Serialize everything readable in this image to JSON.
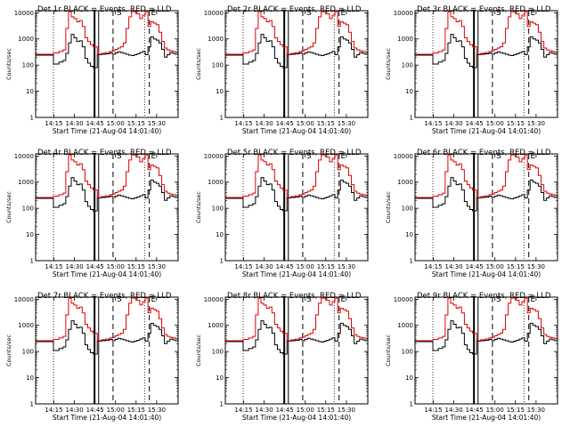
{
  "figure": {
    "panels": [
      {
        "title": "Det 1r BLACK = Events, RED = LLD"
      },
      {
        "title": "Det 2r BLACK = Events, RED = LLD"
      },
      {
        "title": "Det 3r BLACK = Events, RED = LLD"
      },
      {
        "title": "Det 4r BLACK = Events, RED = LLD"
      },
      {
        "title": "Det 5r BLACK = Events, RED = LLD"
      },
      {
        "title": "Det 6r BLACK = Events, RED = LLD"
      },
      {
        "title": "Det 7r BLACK = Events, RED = LLD"
      },
      {
        "title": "Det 8r BLACK = Events, RED = LLD"
      },
      {
        "title": "Det 9r BLACK = Events, RED = LLD"
      }
    ]
  },
  "chart_data": {
    "type": "line",
    "layout": "3x3 grid of identical panels",
    "xlabel": "Start Time (21-Aug-04 14:01:40)",
    "ylabel": "Counts/sec",
    "yscale": "log",
    "ylim": [
      1,
      12000
    ],
    "xlim_minutes": [
      0,
      104
    ],
    "x_tick_labels": [
      "14:15",
      "14:30",
      "14:45",
      "15:00",
      "15:15",
      "15:30"
    ],
    "x_tick_minutes": [
      13.33,
      28.33,
      43.33,
      58.33,
      73.33,
      88.33
    ],
    "y_tick_labels": [
      "1",
      "10",
      "100",
      "1000",
      "10000"
    ],
    "y_tick_values": [
      1,
      10,
      100,
      1000,
      10000
    ],
    "vertical_markers": [
      {
        "x_minutes": 13.0,
        "style": "dotted"
      },
      {
        "x_minutes": 43.0,
        "style": "solid-thick"
      },
      {
        "x_minutes": 46.0,
        "style": "solid"
      },
      {
        "x_minutes": 56.5,
        "style": "dashed"
      },
      {
        "x_minutes": 79.5,
        "style": "dotted"
      },
      {
        "x_minutes": 83.0,
        "style": "dashed"
      }
    ],
    "marker_labels": [
      {
        "text": "S",
        "x_minutes": 61.0
      },
      {
        "text": "E",
        "x_minutes": 86.0
      }
    ],
    "series": [
      {
        "name": "Events",
        "color": "#000000",
        "x": [
          0,
          4,
          8,
          12,
          13,
          17,
          20,
          22,
          24,
          26,
          28,
          30,
          32,
          34,
          36,
          38,
          40,
          42,
          45,
          48,
          51,
          54,
          56,
          58,
          60,
          62,
          64,
          66,
          68,
          70,
          72,
          74,
          76,
          78,
          80,
          82,
          84,
          86,
          88,
          90,
          92,
          94,
          96,
          98,
          100,
          102,
          104
        ],
        "y": [
          240,
          240,
          240,
          240,
          110,
          130,
          150,
          280,
          700,
          1500,
          1100,
          800,
          850,
          500,
          180,
          120,
          90,
          80,
          250,
          260,
          270,
          290,
          260,
          290,
          320,
          300,
          280,
          260,
          240,
          230,
          250,
          270,
          300,
          330,
          250,
          500,
          1200,
          1000,
          900,
          700,
          400,
          200,
          250,
          300,
          280,
          260,
          250
        ]
      },
      {
        "name": "LLD",
        "color": "#e00000",
        "x": [
          0,
          4,
          8,
          12,
          13,
          17,
          20,
          22,
          24,
          26,
          28,
          30,
          32,
          34,
          36,
          38,
          40,
          42,
          45,
          48,
          51,
          54,
          56,
          58,
          60,
          62,
          64,
          66,
          68,
          70,
          72,
          74,
          76,
          78,
          80,
          82,
          84,
          86,
          88,
          90,
          92,
          94,
          96,
          98,
          100,
          102,
          104
        ],
        "y": [
          260,
          260,
          260,
          260,
          290,
          330,
          380,
          2500,
          11000,
          7000,
          6000,
          4500,
          5000,
          3000,
          1100,
          800,
          600,
          500,
          260,
          280,
          300,
          330,
          350,
          400,
          450,
          500,
          700,
          2500,
          7000,
          11000,
          11000,
          9000,
          6000,
          8000,
          11000,
          3000,
          4500,
          4000,
          3500,
          1800,
          800,
          450,
          380,
          350,
          330,
          320,
          310
        ]
      }
    ]
  }
}
